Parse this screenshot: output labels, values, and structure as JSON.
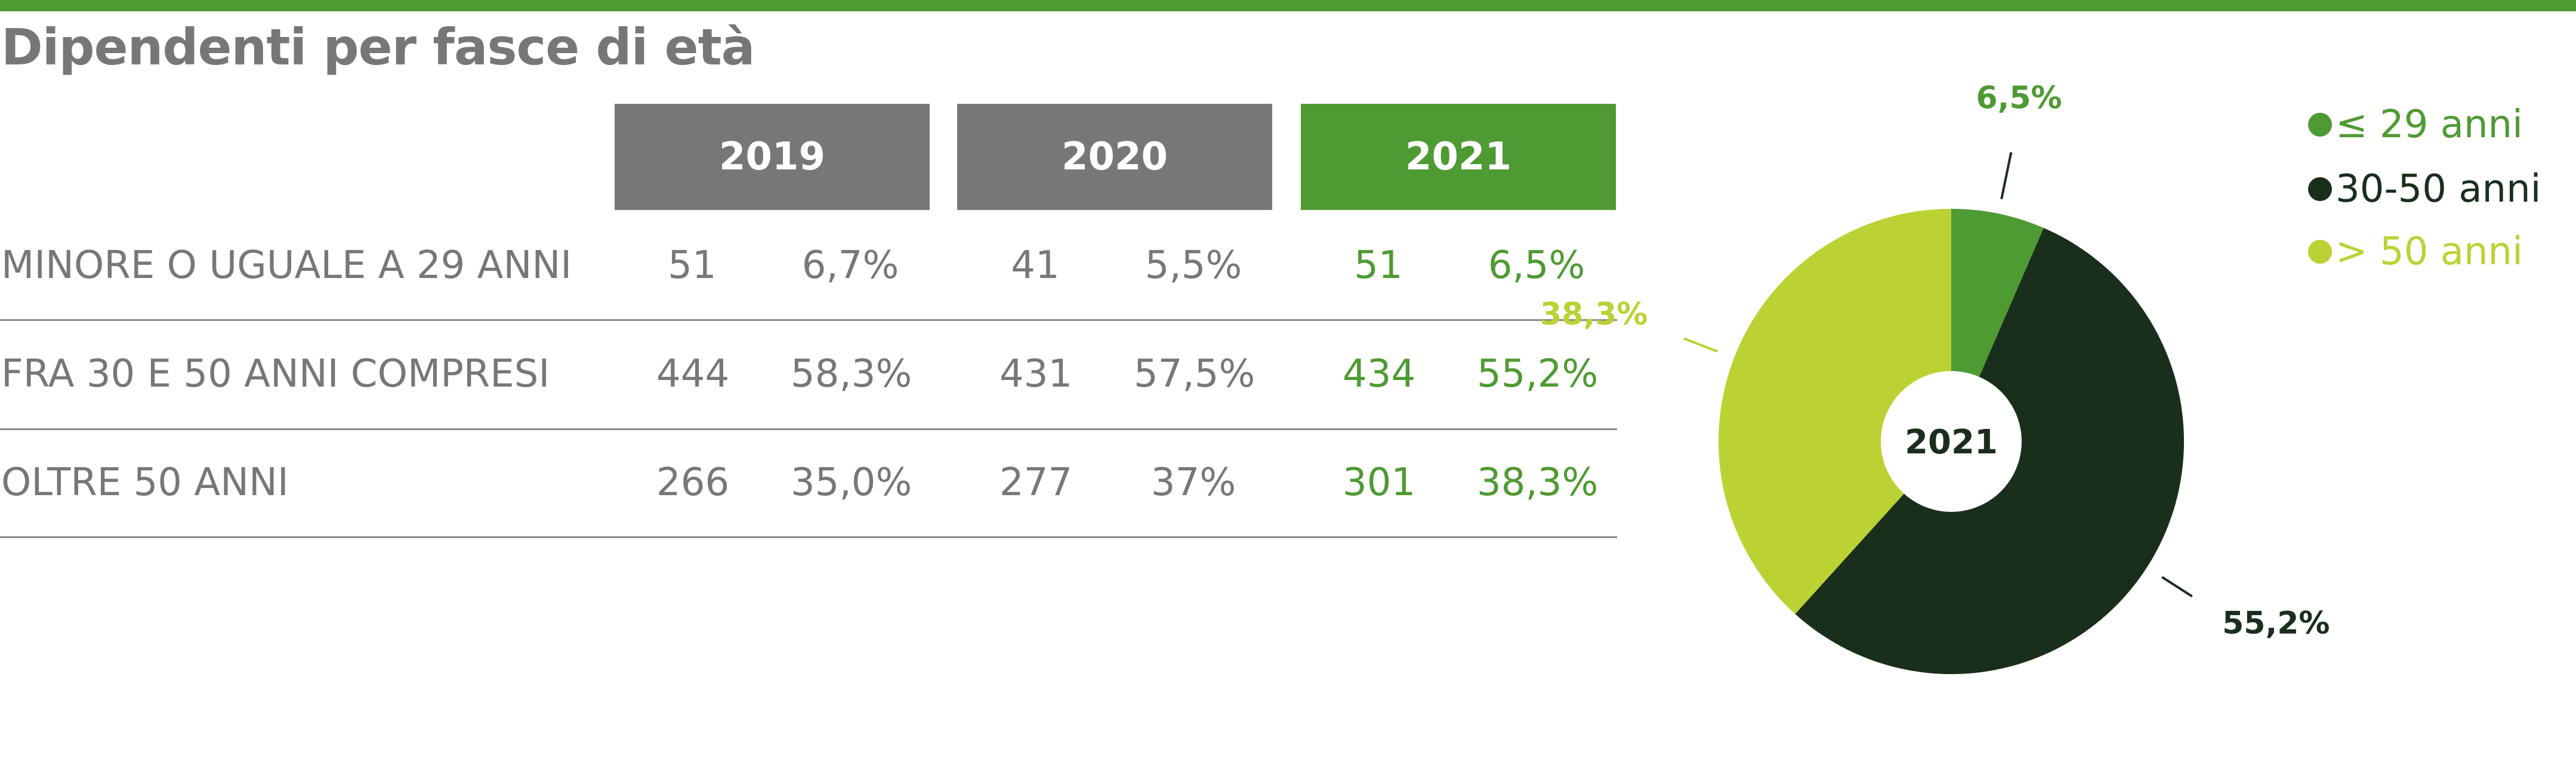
{
  "title": "Dipendenti per fasce di età",
  "colors": {
    "accent": "#4e9a33",
    "grey_header": "#77777a",
    "young": "#4e9a33",
    "middle": "#1a2e1c",
    "old": "#bcd134"
  },
  "table": {
    "years": [
      "2019",
      "2020",
      "2021"
    ],
    "rows": [
      {
        "label": "MINORE O UGUALE A 29 ANNI",
        "cells": [
          "51",
          "6,7%",
          "41",
          "5,5%",
          "51",
          "6,5%"
        ]
      },
      {
        "label": "FRA 30 E 50 ANNI COMPRESI",
        "cells": [
          "444",
          "58,3%",
          "431",
          "57,5%",
          "434",
          "55,2%"
        ]
      },
      {
        "label": "OLTRE 50 ANNI",
        "cells": [
          "266",
          "35,0%",
          "277",
          "37%",
          "301",
          "38,3%"
        ]
      }
    ]
  },
  "chart_data": {
    "type": "pie",
    "center_label": "2021",
    "slices": [
      {
        "name": "≤ 29 anni",
        "value": 6.5,
        "label": "6,5%",
        "color": "#4e9a33"
      },
      {
        "name": "30-50 anni",
        "value": 55.2,
        "label": "55,2%",
        "color": "#1a2e1c"
      },
      {
        "name": "> 50 anni",
        "value": 38.3,
        "label": "38,3%",
        "color": "#bcd134"
      }
    ],
    "legend_position": "right"
  }
}
